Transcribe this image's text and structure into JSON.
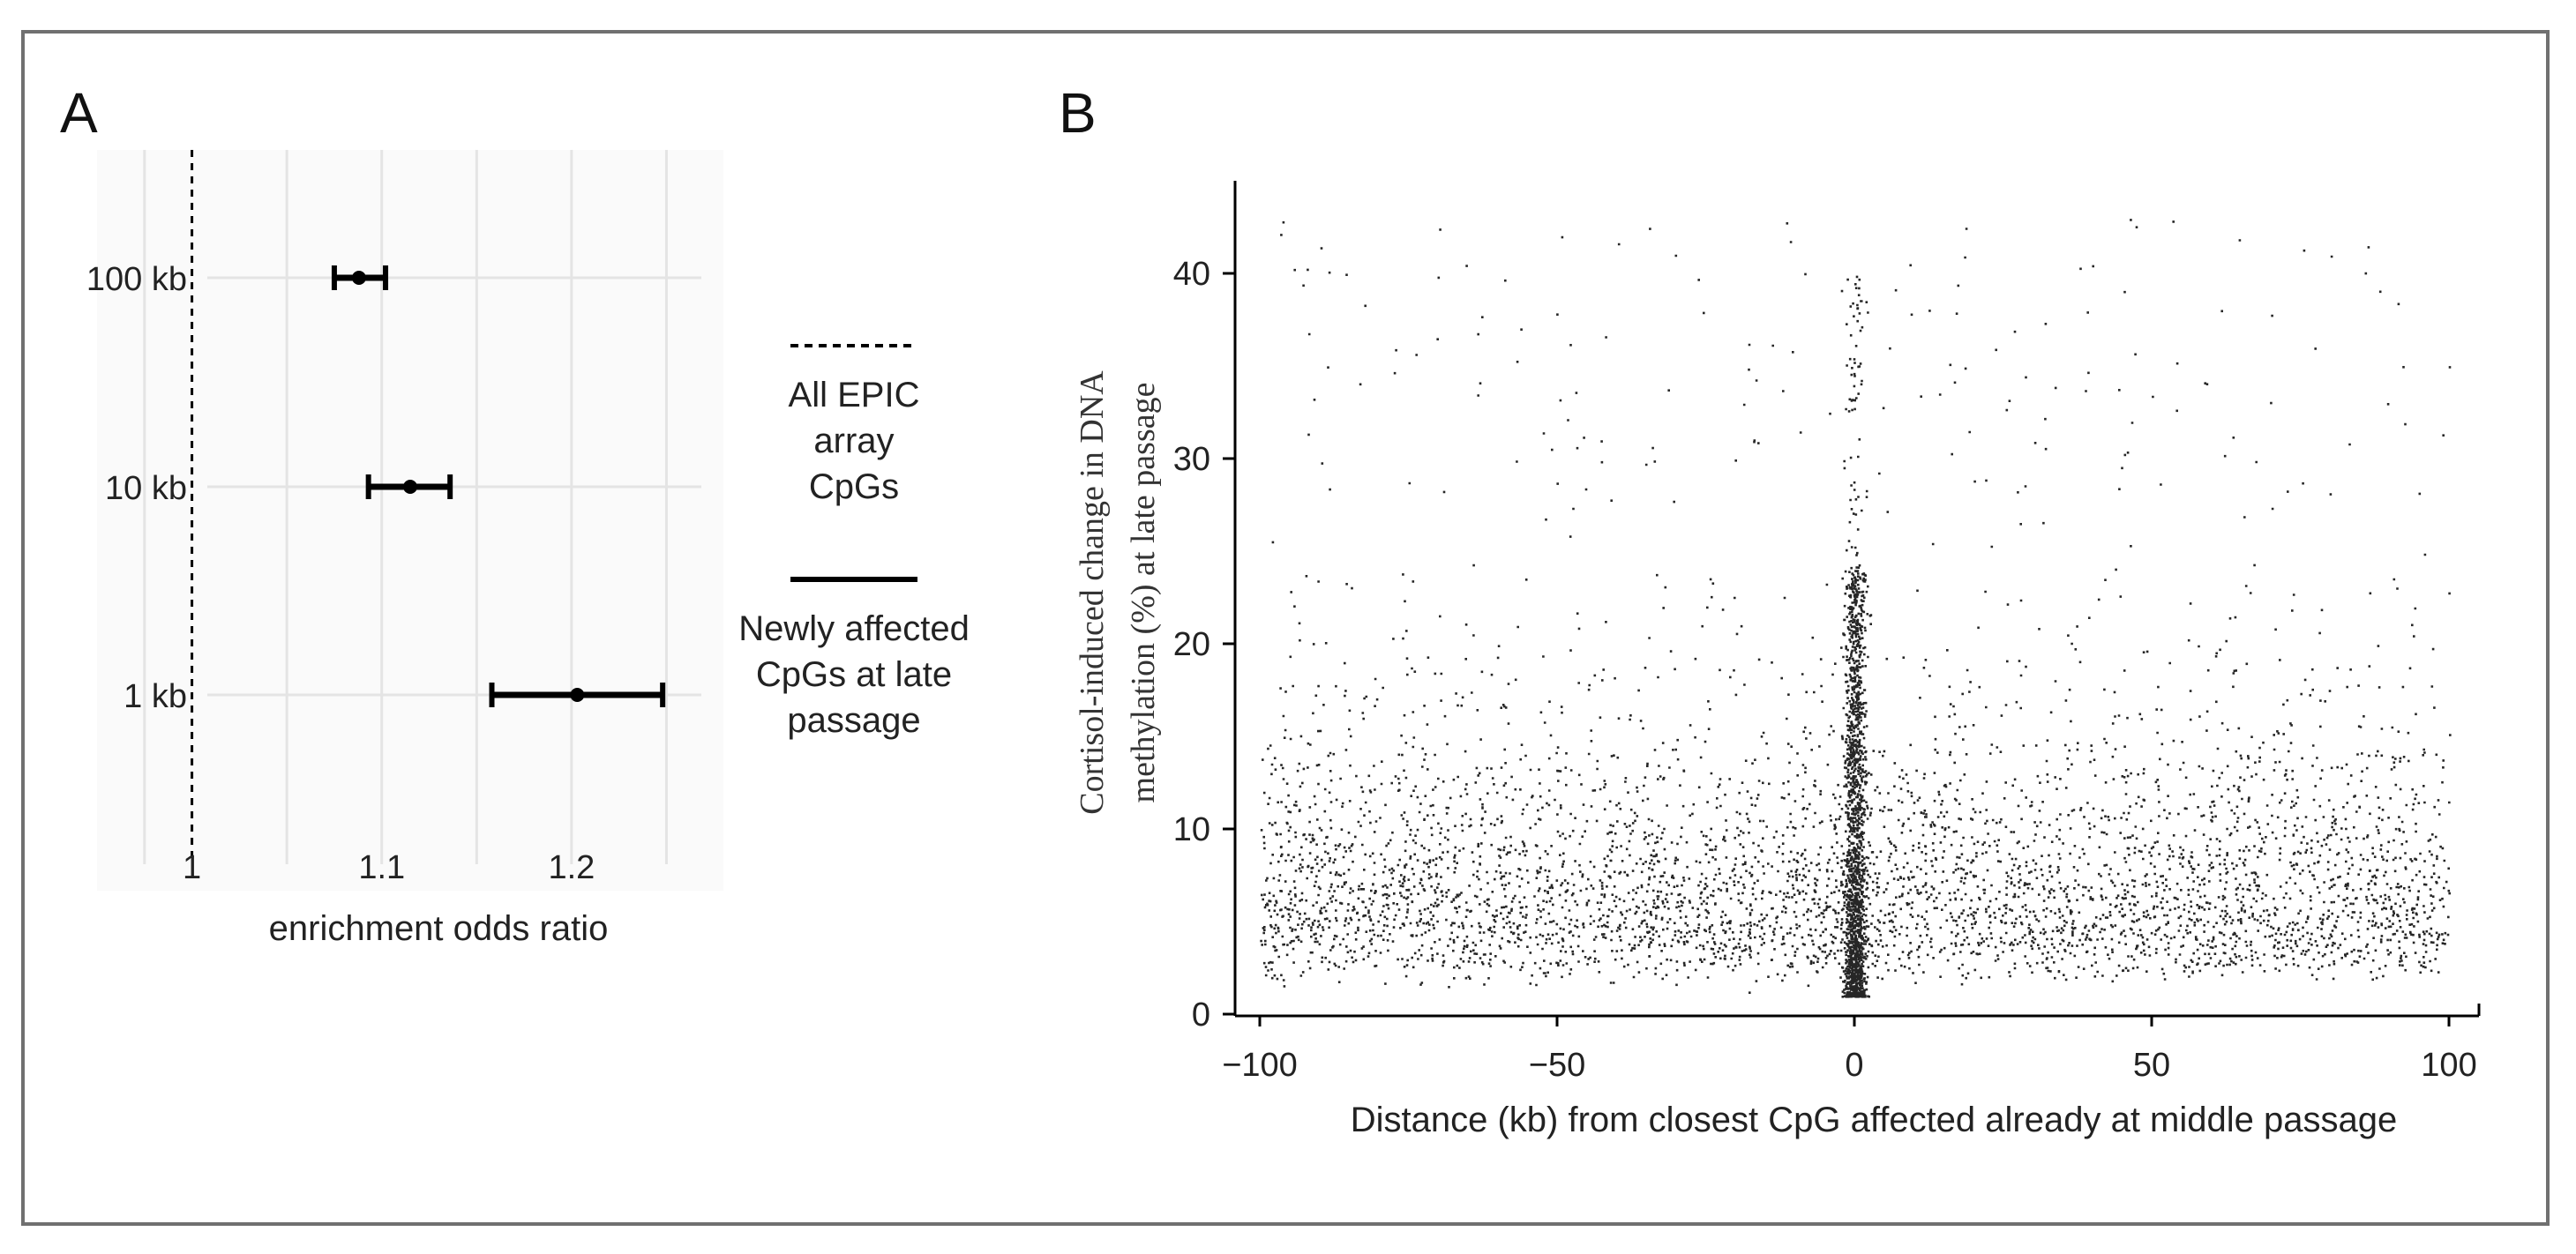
{
  "panels": {
    "a_label": "A",
    "b_label": "B"
  },
  "legend": {
    "items": [
      {
        "style": "dashed",
        "lines": [
          "All EPIC",
          "array",
          "CpGs"
        ]
      },
      {
        "style": "solid",
        "lines": [
          "Newly affected",
          "CpGs at late",
          "passage"
        ]
      }
    ]
  },
  "colors": {
    "frame": "#707070",
    "grid": "#e4e4e4",
    "ink": "#000000",
    "panel_a_bg": "#fafafa"
  },
  "chart_data": [
    {
      "type": "scatter",
      "panel": "A",
      "kind": "point-range",
      "xlabel": "enrichment odds ratio",
      "ylabel": "",
      "xlim": [
        0.95,
        1.28
      ],
      "x_ticks": [
        1,
        1.1,
        1.2
      ],
      "x_tick_labels": [
        "1",
        "1.1",
        "1.2"
      ],
      "categories": [
        "100 kb",
        "10 kb",
        "1 kb"
      ],
      "estimate": [
        1.088,
        1.115,
        1.203
      ],
      "ci_low": [
        1.075,
        1.093,
        1.158
      ],
      "ci_high": [
        1.102,
        1.136,
        1.248
      ],
      "reference_line": 1,
      "grid": true
    },
    {
      "type": "scatter",
      "panel": "B",
      "xlabel": "Distance (kb) from closest CpG affected already at middle passage",
      "ylabel_lines": [
        "Cortisol-induced change in DNA",
        "methylation (%) at late passage"
      ],
      "xlim": [
        -104,
        104
      ],
      "ylim": [
        0,
        45
      ],
      "x_ticks": [
        -100,
        -50,
        0,
        50,
        100
      ],
      "x_tick_labels": [
        "−100",
        "−50",
        "0",
        "50",
        "100"
      ],
      "y_ticks": [
        0,
        10,
        20,
        30,
        40
      ],
      "y_tick_labels": [
        "0",
        "10",
        "20",
        "30",
        "40"
      ],
      "grid": false,
      "density_profile": {
        "description_free": true,
        "x_range": [
          -100,
          100
        ],
        "y_mode": 7,
        "y_upper_far": 33,
        "y_upper_center": 24,
        "center_spike_max": 40,
        "n_points": 19000
      }
    }
  ]
}
